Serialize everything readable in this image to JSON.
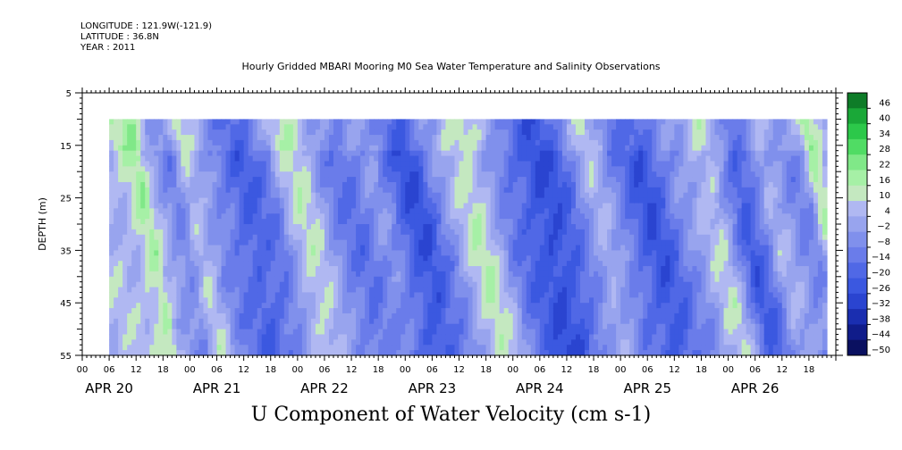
{
  "header": {
    "longitude": "LONGITUDE : 121.9W(-121.9)",
    "latitude": "LATITUDE : 36.8N",
    "year": "YEAR : 2011"
  },
  "chart_data": {
    "type": "heatmap",
    "title": "Hourly Gridded MBARI Mooring M0 Sea Water Temperature and Salinity Observations",
    "variable_label": "U Component of Water Velocity (cm s-1)",
    "ylabel": "DEPTH (m)",
    "ylim": [
      5,
      55
    ],
    "y_inverted": true,
    "y_ticks": [
      "5",
      "15",
      "25",
      "35",
      "45",
      "55"
    ],
    "x_hour_labels": [
      "00",
      "06",
      "12",
      "18",
      "00",
      "06",
      "12",
      "18",
      "00",
      "06",
      "12",
      "18",
      "00",
      "06",
      "12",
      "18",
      "00",
      "06",
      "12",
      "18",
      "00",
      "06",
      "12",
      "18",
      "00",
      "06",
      "12",
      "18"
    ],
    "x_day_labels": [
      "APR 20",
      "APR 21",
      "APR 22",
      "APR 23",
      "APR 24",
      "APR 25",
      "APR 26"
    ],
    "x_range_hours": [
      0,
      168
    ],
    "data_depth_range": [
      10,
      55
    ],
    "data_time_range_hours": [
      6,
      166
    ],
    "colorbar": {
      "levels": [
        46,
        40,
        34,
        28,
        22,
        16,
        10,
        4,
        -2,
        -8,
        -14,
        -20,
        -26,
        -32,
        -38,
        -44,
        -50
      ],
      "min": -50,
      "max": 46,
      "step": 6
    },
    "profile": {
      "description_values_cm_s": [
        [
          6,
          6
        ],
        [
          9,
          14
        ],
        [
          11,
          18
        ],
        [
          12,
          8
        ],
        [
          15,
          -4
        ],
        [
          18,
          -8
        ],
        [
          21,
          10
        ],
        [
          23,
          4
        ],
        [
          26,
          -6
        ],
        [
          30,
          -14
        ],
        [
          33,
          -20
        ],
        [
          36,
          -16
        ],
        [
          40,
          -8
        ],
        [
          42,
          4
        ],
        [
          45,
          12
        ],
        [
          48,
          8
        ],
        [
          51,
          -4
        ],
        [
          54,
          -10
        ],
        [
          57,
          -14
        ],
        [
          60,
          -8
        ],
        [
          63,
          -4
        ],
        [
          66,
          -12
        ],
        [
          69,
          -22
        ],
        [
          72,
          -24
        ],
        [
          75,
          -12
        ],
        [
          78,
          -4
        ],
        [
          81,
          8
        ],
        [
          84,
          14
        ],
        [
          87,
          6
        ],
        [
          90,
          -6
        ],
        [
          93,
          -14
        ],
        [
          96,
          -20
        ],
        [
          99,
          -26
        ],
        [
          102,
          -24
        ],
        [
          105,
          -16
        ],
        [
          108,
          -6
        ],
        [
          111,
          6
        ],
        [
          114,
          -2
        ],
        [
          117,
          -12
        ],
        [
          120,
          -18
        ],
        [
          123,
          -24
        ],
        [
          126,
          -18
        ],
        [
          129,
          -8
        ],
        [
          132,
          -4
        ],
        [
          135,
          6
        ],
        [
          138,
          10
        ],
        [
          141,
          -6
        ],
        [
          144,
          -22
        ],
        [
          147,
          -14
        ],
        [
          150,
          4
        ],
        [
          153,
          0
        ],
        [
          156,
          -8
        ],
        [
          159,
          -4
        ],
        [
          161,
          16
        ],
        [
          163,
          8
        ],
        [
          166,
          -6
        ]
      ]
    },
    "colors": {
      "positive_strong": "#00c030",
      "positive_weak": "#90ee90",
      "negative_weak": "#a8b0ee",
      "negative_strong": "#3050e0",
      "background": "#ffffff"
    }
  }
}
